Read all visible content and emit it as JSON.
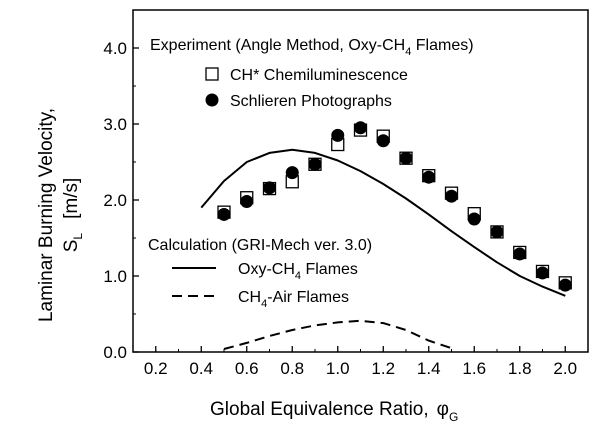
{
  "chart_data": {
    "type": "scatter",
    "xlabel_main": "Global Equivalence Ratio,",
    "xlabel_symbol": "φ",
    "xlabel_sub": "G",
    "ylabel_line1": "Laminar Burning Velocity,",
    "ylabel_symbol": "S",
    "ylabel_sub": "L",
    "ylabel_unit": "[m/s]",
    "xlim": [
      0.1,
      2.1
    ],
    "ylim": [
      0.0,
      4.5
    ],
    "x_ticks": [
      "0.2",
      "0.4",
      "0.6",
      "0.8",
      "1.0",
      "1.2",
      "1.4",
      "1.6",
      "1.8",
      "2.0"
    ],
    "y_ticks": [
      "0.0",
      "1.0",
      "2.0",
      "3.0",
      "4.0"
    ],
    "grid": false,
    "legend_experiment": {
      "heading_pre": "Experiment (Angle Method, Oxy-CH",
      "heading_sub": "4",
      "heading_post": " Flames)",
      "item1_pre": "CH* Chemiluminescence",
      "item2_pre": "Schlieren Photographs"
    },
    "legend_calculation": {
      "heading": "Calculation (GRI-Mech ver. 3.0)",
      "item1_pre": "Oxy-CH",
      "item1_sub": "4",
      "item1_post": " Flames",
      "item2_pre": "CH",
      "item2_sub": "4",
      "item2_post": "-Air Flames"
    },
    "series": [
      {
        "marker": "open-square",
        "points": [
          [
            0.5,
            1.84
          ],
          [
            0.6,
            2.03
          ],
          [
            0.7,
            2.15
          ],
          [
            0.8,
            2.24
          ],
          [
            0.9,
            2.47
          ],
          [
            1.0,
            2.73
          ],
          [
            1.1,
            2.92
          ],
          [
            1.2,
            2.84
          ],
          [
            1.3,
            2.55
          ],
          [
            1.4,
            2.32
          ],
          [
            1.5,
            2.09
          ],
          [
            1.6,
            1.82
          ],
          [
            1.7,
            1.58
          ],
          [
            1.8,
            1.31
          ],
          [
            1.9,
            1.06
          ],
          [
            2.0,
            0.91
          ]
        ]
      },
      {
        "marker": "filled-circle",
        "points": [
          [
            0.5,
            1.81
          ],
          [
            0.6,
            1.98
          ],
          [
            0.7,
            2.16
          ],
          [
            0.8,
            2.36
          ],
          [
            0.9,
            2.47
          ],
          [
            1.0,
            2.85
          ],
          [
            1.1,
            2.95
          ],
          [
            1.2,
            2.78
          ],
          [
            1.3,
            2.55
          ],
          [
            1.4,
            2.3
          ],
          [
            1.5,
            2.05
          ],
          [
            1.6,
            1.75
          ],
          [
            1.7,
            1.58
          ],
          [
            1.8,
            1.29
          ],
          [
            1.9,
            1.04
          ],
          [
            2.0,
            0.88
          ]
        ]
      },
      {
        "line": "solid",
        "points": [
          [
            0.4,
            1.9
          ],
          [
            0.5,
            2.25
          ],
          [
            0.6,
            2.5
          ],
          [
            0.7,
            2.62
          ],
          [
            0.8,
            2.66
          ],
          [
            0.9,
            2.62
          ],
          [
            1.0,
            2.52
          ],
          [
            1.1,
            2.38
          ],
          [
            1.2,
            2.21
          ],
          [
            1.3,
            2.02
          ],
          [
            1.4,
            1.81
          ],
          [
            1.5,
            1.59
          ],
          [
            1.6,
            1.38
          ],
          [
            1.7,
            1.18
          ],
          [
            1.8,
            1.0
          ],
          [
            1.9,
            0.86
          ],
          [
            2.0,
            0.74
          ]
        ]
      },
      {
        "line": "dashed",
        "points": [
          [
            0.5,
            0.04
          ],
          [
            0.6,
            0.12
          ],
          [
            0.7,
            0.21
          ],
          [
            0.8,
            0.29
          ],
          [
            0.9,
            0.35
          ],
          [
            1.0,
            0.39
          ],
          [
            1.1,
            0.41
          ],
          [
            1.2,
            0.38
          ],
          [
            1.3,
            0.29
          ],
          [
            1.4,
            0.15
          ],
          [
            1.5,
            0.05
          ]
        ]
      }
    ]
  }
}
